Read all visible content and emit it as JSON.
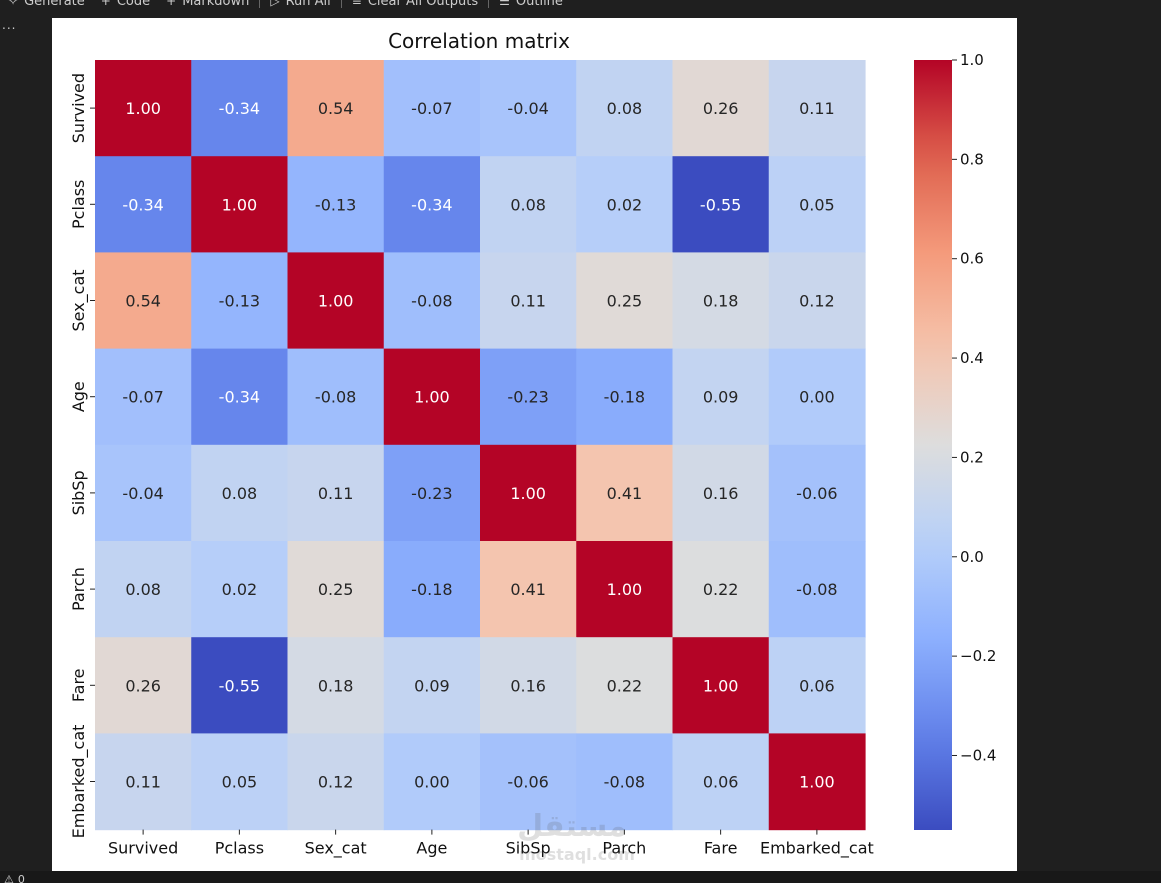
{
  "toolbar": {
    "items": [
      {
        "icon": "sparkle-icon",
        "glyph": "✧",
        "label": "Generate"
      },
      {
        "icon": "plus-icon",
        "glyph": "+",
        "label": "Code"
      },
      {
        "icon": "plus-icon",
        "glyph": "+",
        "label": "Markdown"
      },
      {
        "icon": "run-all-icon",
        "glyph": "▷",
        "label": "Run All"
      },
      {
        "icon": "clear-outputs-icon",
        "glyph": "≡",
        "label": "Clear All Outputs"
      },
      {
        "icon": "outline-icon",
        "glyph": "☰",
        "label": "Outline"
      }
    ]
  },
  "gutter": {
    "more_label": "..."
  },
  "statusbar": {
    "warning_glyph": "⚠",
    "warning_count": "0"
  },
  "watermark": {
    "line1": "مستقل",
    "line2": "mostaql.com"
  },
  "chart_data": {
    "type": "heatmap",
    "title": "Correlation matrix",
    "labels": [
      "Survived",
      "Pclass",
      "Sex_cat",
      "Age",
      "SibSp",
      "Parch",
      "Fare",
      "Embarked_cat"
    ],
    "values": [
      [
        1.0,
        -0.34,
        0.54,
        -0.07,
        -0.04,
        0.08,
        0.26,
        0.11
      ],
      [
        -0.34,
        1.0,
        -0.13,
        -0.34,
        0.08,
        0.02,
        -0.55,
        0.05
      ],
      [
        0.54,
        -0.13,
        1.0,
        -0.08,
        0.11,
        0.25,
        0.18,
        0.12
      ],
      [
        -0.07,
        -0.34,
        -0.08,
        1.0,
        -0.23,
        -0.18,
        0.09,
        0.0
      ],
      [
        -0.04,
        0.08,
        0.11,
        -0.23,
        1.0,
        0.41,
        0.16,
        -0.06
      ],
      [
        0.08,
        0.02,
        0.25,
        -0.18,
        0.41,
        1.0,
        0.22,
        -0.08
      ],
      [
        0.26,
        -0.55,
        0.18,
        0.09,
        0.16,
        0.22,
        1.0,
        0.06
      ],
      [
        0.11,
        0.05,
        0.12,
        0.0,
        -0.06,
        -0.08,
        0.06,
        1.0
      ]
    ],
    "colormap": "coolwarm",
    "vmin": -0.55,
    "vmax": 1.0,
    "colorbar_ticks": [
      "1.0",
      "0.8",
      "0.6",
      "0.4",
      "0.2",
      "0.0",
      "−0.2",
      "−0.4"
    ],
    "colorbar_tick_values": [
      1.0,
      0.8,
      0.6,
      0.4,
      0.2,
      0.0,
      -0.2,
      -0.4
    ],
    "annotation_format": "2 decimals"
  }
}
